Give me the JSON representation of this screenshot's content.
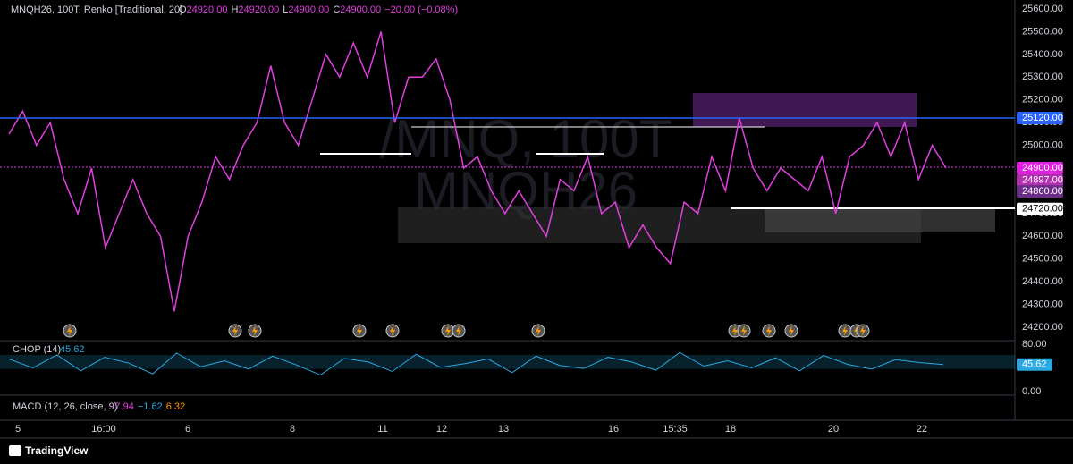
{
  "header": {
    "symbol": "MNQH26, 100T, Renko [Traditional, 20]",
    "ohlc": [
      {
        "key": "O",
        "val": "24920.00"
      },
      {
        "key": "H",
        "val": "24920.00"
      },
      {
        "key": "L",
        "val": "24900.00"
      },
      {
        "key": "C",
        "val": "24900.00"
      }
    ],
    "change": "−20.00 (−0.08%)"
  },
  "watermark": [
    "/MNQ, 100T",
    "MNQH26"
  ],
  "price_axis": {
    "ylim": [
      24200,
      25600
    ],
    "ticks": [
      {
        "value": 25600,
        "label": "25600.00"
      },
      {
        "value": 25500,
        "label": "25500.00"
      },
      {
        "value": 25400,
        "label": "25400.00"
      },
      {
        "value": 25300,
        "label": "25300.00"
      },
      {
        "value": 25200,
        "label": "25200.00"
      },
      {
        "value": 25100,
        "label": "25100.00"
      },
      {
        "value": 25000,
        "label": "25000.00"
      },
      {
        "value": 24900,
        "label": "24900.00"
      },
      {
        "value": 24800,
        "label": "24800.00"
      },
      {
        "value": 24700,
        "label": "24700.00"
      },
      {
        "value": 24600,
        "label": "24600.00"
      },
      {
        "value": 24500,
        "label": "24500.00"
      },
      {
        "value": 24400,
        "label": "24400.00"
      },
      {
        "value": 24300,
        "label": "24300.00"
      },
      {
        "value": 24200,
        "label": "24200.00"
      }
    ],
    "price_labels": [
      {
        "value": 25120,
        "label": "25120.00",
        "color": "#2962ff"
      },
      {
        "value": 24900,
        "label": "24900.00",
        "color": "#e020e0"
      },
      {
        "value": 24897,
        "label": "24897.00",
        "color": "#b030b0"
      },
      {
        "value": 24860,
        "label": "24860.00",
        "color": "#6b2d86"
      },
      {
        "value": 24720,
        "label": "24720.00",
        "color": "#ffffff"
      }
    ]
  },
  "price_series": {
    "color": "#e040e0",
    "values": [
      25050,
      25150,
      25000,
      25100,
      24850,
      24700,
      24900,
      24550,
      24700,
      24850,
      24700,
      24600,
      24270,
      24600,
      24750,
      24950,
      24850,
      25000,
      25100,
      25350,
      25100,
      25000,
      25200,
      25400,
      25300,
      25450,
      25300,
      25500,
      25100,
      25300,
      25300,
      25380,
      25200,
      24900,
      24950,
      24800,
      24700,
      24800,
      24700,
      24600,
      24850,
      24800,
      24950,
      24700,
      24750,
      24550,
      24650,
      24550,
      24480,
      24750,
      24700,
      24950,
      24800,
      25120,
      24900,
      24800,
      24900,
      24850,
      24800,
      24950,
      24700,
      24950,
      25000,
      25100,
      24950,
      25100,
      24850,
      25000,
      24900
    ]
  },
  "chop": {
    "title": "CHOP (14)",
    "value": "45.62",
    "ylim": [
      0,
      80
    ],
    "ticks": [
      {
        "value": 80,
        "label": "80.00"
      },
      {
        "value": 0,
        "label": "0.00"
      }
    ],
    "value_mark": 45.62,
    "values": [
      55,
      40,
      62,
      35,
      58,
      48,
      30,
      65,
      42,
      52,
      38,
      60,
      45,
      28,
      56,
      50,
      34,
      63,
      41,
      47,
      55,
      32,
      60,
      44,
      39,
      58,
      50,
      36,
      66,
      43,
      52,
      40,
      57,
      35,
      61,
      46,
      38,
      54,
      49,
      45.62
    ]
  },
  "macd": {
    "title": "MACD (12, 26, close, 9)",
    "values": [
      {
        "text": "−7.94",
        "color": "#e040e0"
      },
      {
        "text": "−1.62",
        "color": "#2aa8e0"
      },
      {
        "text": "6.32",
        "color": "#ff9800"
      }
    ]
  },
  "time_axis": [
    "5",
    "16:00",
    "6",
    "8",
    "11",
    "12",
    "13",
    "16",
    "15:35",
    "18",
    "20",
    "22"
  ],
  "footer": {
    "brand": "TradingView"
  }
}
